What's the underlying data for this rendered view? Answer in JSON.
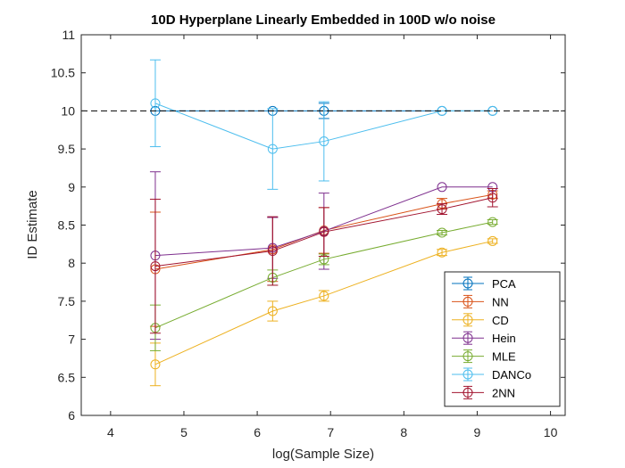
{
  "chart_data": {
    "type": "line",
    "title": "10D Hyperplane Linearly Embedded in 100D w/o noise",
    "xlabel": "log(Sample Size)",
    "ylabel": "ID Estimate",
    "xlim": [
      3.6,
      10.2
    ],
    "ylim": [
      6,
      11
    ],
    "xticks": [
      4,
      5,
      6,
      7,
      8,
      9,
      10
    ],
    "yticks": [
      6,
      6.5,
      7,
      7.5,
      8,
      8.5,
      9,
      9.5,
      10,
      10.5,
      11
    ],
    "ytick_labels": [
      "6",
      "6.5",
      "7",
      "7.5",
      "8",
      "8.5",
      "9",
      "9.5",
      "10",
      "10.5",
      "11"
    ],
    "grid": false,
    "reference_line": {
      "y": 10,
      "style": "dashed",
      "color": "#000000"
    },
    "legend_position": "bottom-right",
    "x": [
      4.61,
      6.21,
      6.91,
      8.52,
      9.21
    ],
    "series": [
      {
        "name": "PCA",
        "color": "#0072BD",
        "values": [
          10.0,
          10.0,
          10.0,
          10.0,
          10.0
        ],
        "errors": [
          0.0,
          0.0,
          0.1,
          0.0,
          0.0
        ]
      },
      {
        "name": "NN",
        "color": "#D95319",
        "values": [
          7.92,
          8.18,
          8.43,
          8.78,
          8.9
        ],
        "errors": [
          0.75,
          0.42,
          0.3,
          0.07,
          0.05
        ]
      },
      {
        "name": "CD",
        "color": "#EDB120",
        "values": [
          6.67,
          7.37,
          7.57,
          8.14,
          8.29
        ],
        "errors": [
          0.28,
          0.13,
          0.07,
          0.04,
          0.03
        ]
      },
      {
        "name": "Hein",
        "color": "#7E2F8E",
        "values": [
          8.1,
          8.2,
          8.42,
          9.0,
          9.0
        ],
        "errors": [
          1.1,
          0.4,
          0.5,
          0.0,
          0.0
        ]
      },
      {
        "name": "MLE",
        "color": "#77AC30",
        "values": [
          7.15,
          7.81,
          8.05,
          8.4,
          8.54
        ],
        "errors": [
          0.3,
          0.1,
          0.07,
          0.03,
          0.03
        ]
      },
      {
        "name": "DANCo",
        "color": "#4DBEEE",
        "values": [
          10.1,
          9.5,
          9.6,
          10.0,
          10.0
        ],
        "errors": [
          0.57,
          0.53,
          0.52,
          0.0,
          0.0
        ]
      },
      {
        "name": "2NN",
        "color": "#A2142F",
        "values": [
          7.96,
          8.16,
          8.41,
          8.71,
          8.86
        ],
        "errors": [
          0.88,
          0.45,
          0.32,
          0.07,
          0.12
        ]
      }
    ]
  }
}
